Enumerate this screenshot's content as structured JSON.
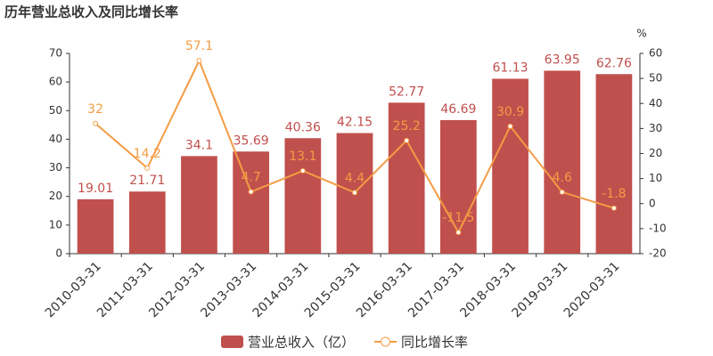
{
  "chart_data": {
    "type": "bar",
    "title": "历年营业总收入及同比增长率",
    "categories": [
      "2010-03-31",
      "2011-03-31",
      "2012-03-31",
      "2013-03-31",
      "2014-03-31",
      "2015-03-31",
      "2016-03-31",
      "2017-03-31",
      "2018-03-31",
      "2019-03-31",
      "2020-03-31"
    ],
    "series": [
      {
        "name": "营业总收入（亿）",
        "type": "bar",
        "color": "#c0504d",
        "values": [
          19.01,
          21.71,
          34.1,
          35.69,
          40.36,
          42.15,
          52.77,
          46.69,
          61.13,
          63.95,
          62.76
        ]
      },
      {
        "name": "同比增长率",
        "type": "line",
        "axis": "y2",
        "color": "#f39c45",
        "values": [
          32,
          14.2,
          57.1,
          4.7,
          13.1,
          4.4,
          25.2,
          -11.5,
          30.9,
          4.6,
          -1.8
        ]
      }
    ],
    "ylim": [
      0,
      70
    ],
    "yticks": [
      0,
      10,
      20,
      30,
      40,
      50,
      60,
      70
    ],
    "y2lim": [
      -20,
      60
    ],
    "y2ticks": [
      -20,
      -10,
      0,
      10,
      20,
      30,
      40,
      50,
      60
    ],
    "y2_label": "%",
    "grid": false
  }
}
